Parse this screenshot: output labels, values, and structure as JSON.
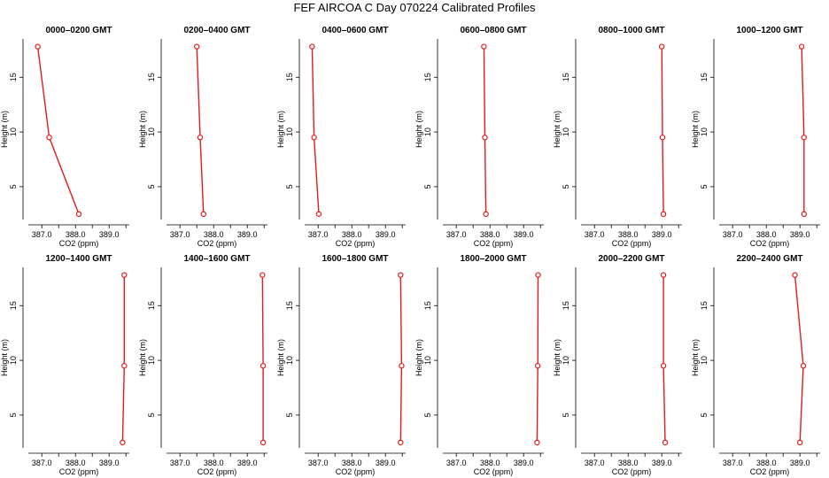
{
  "title": "FEF AIRCOA C  Day 070224  Calibrated Profiles",
  "colors": {
    "profile": "#e41a1c",
    "axis": "#000000",
    "background": "#ffffff"
  },
  "chart_data": [
    {
      "type": "line",
      "title": "0000–0200 GMT",
      "xlabel": "CO2 (ppm)",
      "ylabel": "Height (m)",
      "xlim": [
        386.6,
        389.6
      ],
      "ylim": [
        2,
        18.5
      ],
      "x_ticks": [
        "387.0",
        "388.0",
        "389.0"
      ],
      "y_ticks": [
        "5",
        "10",
        "15"
      ],
      "points": [
        {
          "x": 386.88,
          "y": 17.8
        },
        {
          "x": 387.22,
          "y": 9.5
        },
        {
          "x": 388.1,
          "y": 2.5
        }
      ]
    },
    {
      "type": "line",
      "title": "0200–0400 GMT",
      "xlabel": "CO2 (ppm)",
      "ylabel": "Height (m)",
      "xlim": [
        386.6,
        389.6
      ],
      "ylim": [
        2,
        18.5
      ],
      "x_ticks": [
        "387.0",
        "388.0",
        "389.0"
      ],
      "y_ticks": [
        "5",
        "10",
        "15"
      ],
      "points": [
        {
          "x": 387.5,
          "y": 17.8
        },
        {
          "x": 387.6,
          "y": 9.5
        },
        {
          "x": 387.7,
          "y": 2.5
        }
      ]
    },
    {
      "type": "line",
      "title": "0400–0600 GMT",
      "xlabel": "CO2 (ppm)",
      "ylabel": "Height (m)",
      "xlim": [
        386.6,
        389.6
      ],
      "ylim": [
        2,
        18.5
      ],
      "x_ticks": [
        "387.0",
        "388.0",
        "389.0"
      ],
      "y_ticks": [
        "5",
        "10",
        "15"
      ],
      "points": [
        {
          "x": 386.82,
          "y": 17.8
        },
        {
          "x": 386.88,
          "y": 9.5
        },
        {
          "x": 387.02,
          "y": 2.5
        }
      ]
    },
    {
      "type": "line",
      "title": "0600–0800 GMT",
      "xlabel": "CO2 (ppm)",
      "ylabel": "Height (m)",
      "xlim": [
        386.6,
        389.6
      ],
      "ylim": [
        2,
        18.5
      ],
      "x_ticks": [
        "387.0",
        "388.0",
        "389.0"
      ],
      "y_ticks": [
        "5",
        "10",
        "15"
      ],
      "points": [
        {
          "x": 387.82,
          "y": 17.8
        },
        {
          "x": 387.85,
          "y": 9.5
        },
        {
          "x": 387.88,
          "y": 2.5
        }
      ]
    },
    {
      "type": "line",
      "title": "0800–1000 GMT",
      "xlabel": "CO2 (ppm)",
      "ylabel": "Height (m)",
      "xlim": [
        386.6,
        389.6
      ],
      "ylim": [
        2,
        18.5
      ],
      "x_ticks": [
        "387.0",
        "388.0",
        "389.0"
      ],
      "y_ticks": [
        "5",
        "10",
        "15"
      ],
      "points": [
        {
          "x": 389.0,
          "y": 17.8
        },
        {
          "x": 389.02,
          "y": 9.5
        },
        {
          "x": 389.05,
          "y": 2.5
        }
      ]
    },
    {
      "type": "line",
      "title": "1000–1200 GMT",
      "xlabel": "CO2 (ppm)",
      "ylabel": "Height (m)",
      "xlim": [
        386.6,
        389.6
      ],
      "ylim": [
        2,
        18.5
      ],
      "x_ticks": [
        "387.0",
        "388.0",
        "389.0"
      ],
      "y_ticks": [
        "5",
        "10",
        "15"
      ],
      "points": [
        {
          "x": 389.05,
          "y": 17.8
        },
        {
          "x": 389.12,
          "y": 9.5
        },
        {
          "x": 389.12,
          "y": 2.5
        }
      ]
    },
    {
      "type": "line",
      "title": "1200–1400 GMT",
      "xlabel": "CO2 (ppm)",
      "ylabel": "Height (m)",
      "xlim": [
        386.6,
        389.6
      ],
      "ylim": [
        2,
        18.5
      ],
      "x_ticks": [
        "387.0",
        "388.0",
        "389.0"
      ],
      "y_ticks": [
        "5",
        "10",
        "15"
      ],
      "points": [
        {
          "x": 389.45,
          "y": 17.8
        },
        {
          "x": 389.45,
          "y": 9.5
        },
        {
          "x": 389.4,
          "y": 2.5
        }
      ]
    },
    {
      "type": "line",
      "title": "1400–1600 GMT",
      "xlabel": "CO2 (ppm)",
      "ylabel": "Height (m)",
      "xlim": [
        386.6,
        389.6
      ],
      "ylim": [
        2,
        18.5
      ],
      "x_ticks": [
        "387.0",
        "388.0",
        "389.0"
      ],
      "y_ticks": [
        "5",
        "10",
        "15"
      ],
      "points": [
        {
          "x": 389.45,
          "y": 17.8
        },
        {
          "x": 389.47,
          "y": 9.5
        },
        {
          "x": 389.47,
          "y": 2.5
        }
      ]
    },
    {
      "type": "line",
      "title": "1600–1800 GMT",
      "xlabel": "CO2 (ppm)",
      "ylabel": "Height (m)",
      "xlim": [
        386.6,
        389.6
      ],
      "ylim": [
        2,
        18.5
      ],
      "x_ticks": [
        "387.0",
        "388.0",
        "389.0"
      ],
      "y_ticks": [
        "5",
        "10",
        "15"
      ],
      "points": [
        {
          "x": 389.45,
          "y": 17.8
        },
        {
          "x": 389.48,
          "y": 9.5
        },
        {
          "x": 389.45,
          "y": 2.5
        }
      ]
    },
    {
      "type": "line",
      "title": "1800–2000 GMT",
      "xlabel": "CO2 (ppm)",
      "ylabel": "Height (m)",
      "xlim": [
        386.6,
        389.6
      ],
      "ylim": [
        2,
        18.5
      ],
      "x_ticks": [
        "387.0",
        "388.0",
        "389.0"
      ],
      "y_ticks": [
        "5",
        "10",
        "15"
      ],
      "points": [
        {
          "x": 389.43,
          "y": 17.8
        },
        {
          "x": 389.42,
          "y": 9.5
        },
        {
          "x": 389.4,
          "y": 2.5
        }
      ]
    },
    {
      "type": "line",
      "title": "2000–2200 GMT",
      "xlabel": "CO2 (ppm)",
      "ylabel": "Height (m)",
      "xlim": [
        386.6,
        389.6
      ],
      "ylim": [
        2,
        18.5
      ],
      "x_ticks": [
        "387.0",
        "388.0",
        "389.0"
      ],
      "y_ticks": [
        "5",
        "10",
        "15"
      ],
      "points": [
        {
          "x": 389.05,
          "y": 17.8
        },
        {
          "x": 389.05,
          "y": 9.5
        },
        {
          "x": 389.1,
          "y": 2.5
        }
      ]
    },
    {
      "type": "line",
      "title": "2200–2400 GMT",
      "xlabel": "CO2 (ppm)",
      "ylabel": "Height (m)",
      "xlim": [
        386.6,
        389.6
      ],
      "ylim": [
        2,
        18.5
      ],
      "x_ticks": [
        "387.0",
        "388.0",
        "389.0"
      ],
      "y_ticks": [
        "5",
        "10",
        "15"
      ],
      "points": [
        {
          "x": 388.85,
          "y": 17.8
        },
        {
          "x": 389.1,
          "y": 9.5
        },
        {
          "x": 389.0,
          "y": 2.5
        }
      ]
    }
  ]
}
